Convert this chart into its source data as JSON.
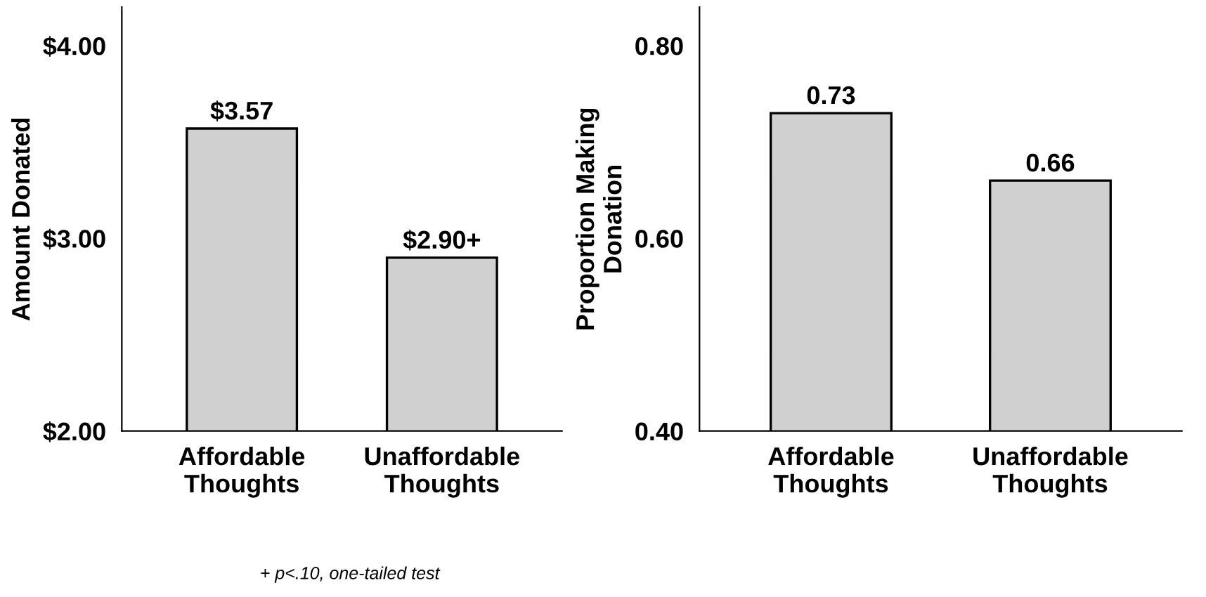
{
  "chart_data": [
    {
      "type": "bar",
      "ylabel": "Amount Donated",
      "categories": [
        "Affordable\nThoughts",
        "Unaffordable\nThoughts"
      ],
      "values": [
        3.57,
        2.9
      ],
      "value_labels": [
        "$3.57",
        "$2.90+"
      ],
      "color": "#d0d0d0",
      "ylim": [
        2,
        4.2
      ],
      "yticks": [
        {
          "value": 2,
          "label": "$2.00"
        },
        {
          "value": 3,
          "label": "$3.00"
        },
        {
          "value": 4,
          "label": "$4.00"
        }
      ],
      "grid": false,
      "annotations": [
        "+ p<.10, one-tailed test"
      ]
    },
    {
      "type": "bar",
      "ylabel": "Proportion Making\nDonation",
      "categories": [
        "Affordable\nThoughts",
        "Unaffordable\nThoughts"
      ],
      "values": [
        0.73,
        0.66
      ],
      "data_labels": true,
      "color": "#d0d0d0",
      "ylim": [
        0.4,
        0.84
      ],
      "yticks": [
        {
          "value": 0.4,
          "label": "0.40"
        },
        {
          "value": 0.6,
          "label": "0.60"
        },
        {
          "value": 0.8,
          "label": "0.80"
        }
      ],
      "grid": false
    }
  ]
}
